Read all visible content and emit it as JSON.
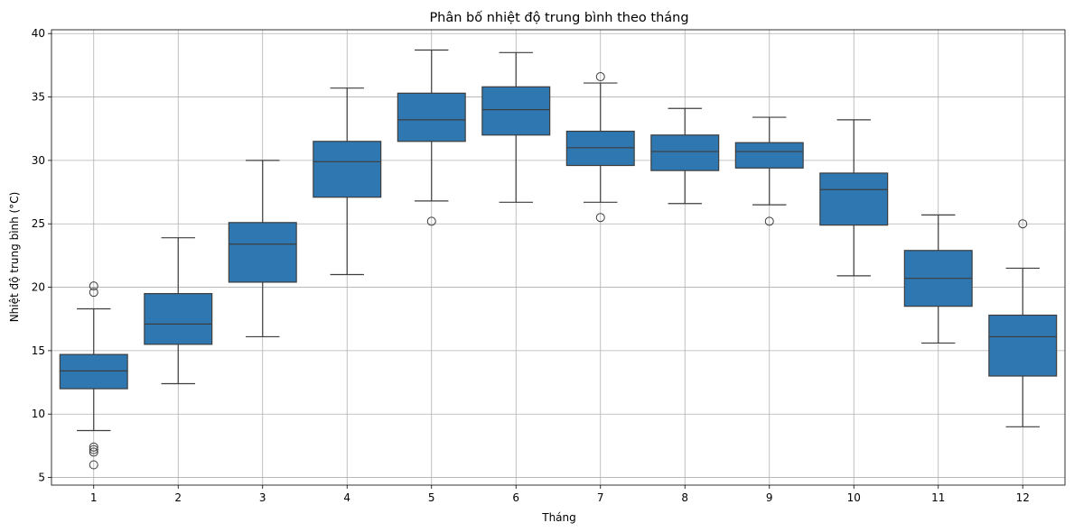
{
  "chart_data": {
    "type": "box",
    "title": "Phân bố nhiệt độ trung bình theo tháng",
    "xlabel": "Tháng",
    "ylabel": "Nhiệt độ trung bình (°C)",
    "ylim": [
      4.4,
      40.3
    ],
    "yticks": [
      5,
      10,
      15,
      20,
      25,
      30,
      35,
      40
    ],
    "grid": true,
    "box_color": "#2f77b0",
    "line_color": "#3d3d3d",
    "grid_color": "#b0b0b0",
    "categories": [
      "1",
      "2",
      "3",
      "4",
      "5",
      "6",
      "7",
      "8",
      "9",
      "10",
      "11",
      "12"
    ],
    "boxes": [
      {
        "whislo": 8.7,
        "q1": 12.0,
        "med": 13.4,
        "q3": 14.7,
        "whishi": 18.3,
        "fliers": [
          20.1,
          19.6,
          7.4,
          7.2,
          7.0,
          6.0
        ]
      },
      {
        "whislo": 12.4,
        "q1": 15.5,
        "med": 17.1,
        "q3": 19.5,
        "whishi": 23.9,
        "fliers": []
      },
      {
        "whislo": 16.1,
        "q1": 20.4,
        "med": 23.4,
        "q3": 25.1,
        "whishi": 30.0,
        "fliers": []
      },
      {
        "whislo": 21.0,
        "q1": 27.1,
        "med": 29.9,
        "q3": 31.5,
        "whishi": 35.7,
        "fliers": []
      },
      {
        "whislo": 26.8,
        "q1": 31.5,
        "med": 33.2,
        "q3": 35.3,
        "whishi": 38.7,
        "fliers": [
          25.2
        ]
      },
      {
        "whislo": 26.7,
        "q1": 32.0,
        "med": 34.0,
        "q3": 35.8,
        "whishi": 38.5,
        "fliers": []
      },
      {
        "whislo": 26.7,
        "q1": 29.6,
        "med": 31.0,
        "q3": 32.3,
        "whishi": 36.1,
        "fliers": [
          36.6,
          25.5
        ]
      },
      {
        "whislo": 26.6,
        "q1": 29.2,
        "med": 30.7,
        "q3": 32.0,
        "whishi": 34.1,
        "fliers": []
      },
      {
        "whislo": 26.5,
        "q1": 29.4,
        "med": 30.7,
        "q3": 31.4,
        "whishi": 33.4,
        "fliers": [
          25.2
        ]
      },
      {
        "whislo": 20.9,
        "q1": 24.9,
        "med": 27.7,
        "q3": 29.0,
        "whishi": 33.2,
        "fliers": []
      },
      {
        "whislo": 15.6,
        "q1": 18.5,
        "med": 20.7,
        "q3": 22.9,
        "whishi": 25.7,
        "fliers": []
      },
      {
        "whislo": 9.0,
        "q1": 13.0,
        "med": 16.1,
        "q3": 17.8,
        "whishi": 21.5,
        "fliers": [
          25.0
        ]
      }
    ]
  }
}
